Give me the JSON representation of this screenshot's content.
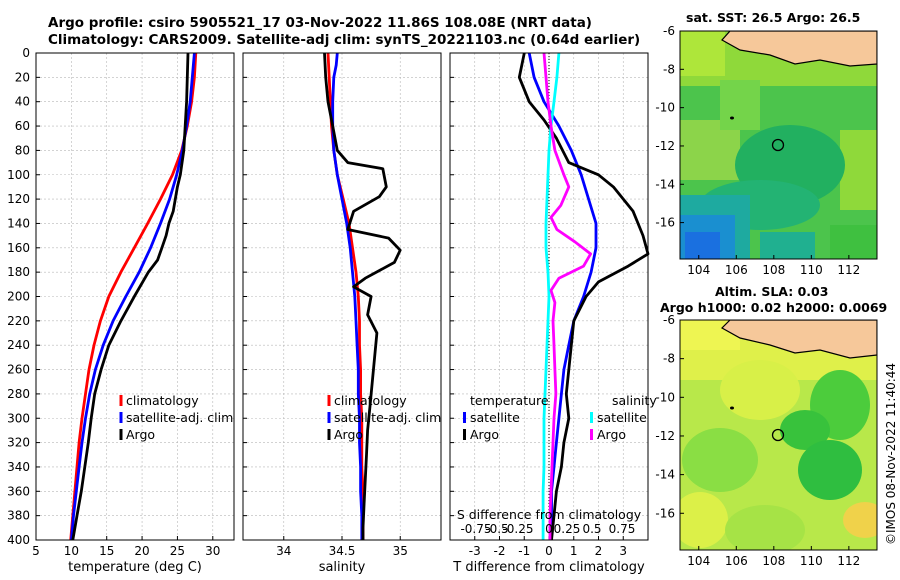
{
  "header": {
    "title_line1": "Argo profile: csiro 5905521_17 03-Nov-2022 11.86S 108.08E (NRT data)",
    "title_line2": "Climatology: CARS2009. Satellite-adj clim: synTS_20221103.nc (0.64d earlier)"
  },
  "map_panel": {
    "sst_title": "sat. SST: 26.5 Argo: 26.5",
    "sla_title_line1": "Altim. SLA: 0.03",
    "sla_title_line2": "Argo h1000: 0.02 h2000: 0.0069",
    "x_ticks": [
      "104",
      "106",
      "108",
      "110",
      "112"
    ],
    "y_ticks": [
      "-6",
      "-8",
      "-10",
      "-12",
      "-14",
      "-16"
    ],
    "float_position": {
      "lon": 108.08,
      "lat": -11.86
    }
  },
  "stamp": "©IMOS 08-Nov-2022 11:40:44",
  "colors": {
    "climatology": "#ff0000",
    "satellite": "#0000ff",
    "argo": "#000000",
    "s_diff": "#00ffff",
    "t_diff": "#ff00ff"
  },
  "chart_data": [
    {
      "type": "line",
      "xlabel": "temperature (deg C)",
      "ylabel": "",
      "xlim": [
        5,
        33
      ],
      "ylim": [
        400,
        0
      ],
      "x_ticks": [
        "5",
        "10",
        "15",
        "20",
        "25",
        "30"
      ],
      "y_ticks": [
        "0",
        "20",
        "40",
        "60",
        "80",
        "100",
        "120",
        "140",
        "160",
        "180",
        "200",
        "220",
        "240",
        "260",
        "280",
        "300",
        "320",
        "340",
        "360",
        "380",
        "400"
      ],
      "legend": [
        "climatology",
        "satellite-adj. clim",
        "Argo"
      ],
      "series": [
        {
          "name": "climatology",
          "points": [
            [
              27.6,
              0
            ],
            [
              27.4,
              20
            ],
            [
              27.0,
              40
            ],
            [
              26.4,
              60
            ],
            [
              25.6,
              80
            ],
            [
              24.3,
              100
            ],
            [
              22.6,
              120
            ],
            [
              20.8,
              140
            ],
            [
              18.9,
              160
            ],
            [
              17.0,
              180
            ],
            [
              15.3,
              200
            ],
            [
              14.1,
              220
            ],
            [
              13.2,
              240
            ],
            [
              12.5,
              260
            ],
            [
              12.0,
              280
            ],
            [
              11.5,
              300
            ],
            [
              11.1,
              320
            ],
            [
              10.8,
              340
            ],
            [
              10.5,
              360
            ],
            [
              10.2,
              380
            ],
            [
              9.9,
              400
            ]
          ]
        },
        {
          "name": "satellite-adj. clim",
          "points": [
            [
              27.4,
              0
            ],
            [
              27.1,
              20
            ],
            [
              26.8,
              40
            ],
            [
              26.3,
              60
            ],
            [
              25.7,
              80
            ],
            [
              24.9,
              100
            ],
            [
              23.9,
              120
            ],
            [
              22.6,
              140
            ],
            [
              21.2,
              160
            ],
            [
              19.6,
              180
            ],
            [
              17.7,
              200
            ],
            [
              15.9,
              220
            ],
            [
              14.5,
              240
            ],
            [
              13.4,
              260
            ],
            [
              12.6,
              280
            ],
            [
              12.0,
              300
            ],
            [
              11.5,
              320
            ],
            [
              11.1,
              340
            ],
            [
              10.7,
              360
            ],
            [
              10.3,
              380
            ],
            [
              10.0,
              400
            ]
          ]
        },
        {
          "name": "Argo",
          "points": [
            [
              26.5,
              0
            ],
            [
              26.4,
              20
            ],
            [
              26.3,
              40
            ],
            [
              26.1,
              60
            ],
            [
              25.9,
              80
            ],
            [
              25.4,
              100
            ],
            [
              25.0,
              110
            ],
            [
              24.7,
              120
            ],
            [
              24.4,
              130
            ],
            [
              23.8,
              140
            ],
            [
              23.4,
              150
            ],
            [
              22.8,
              160
            ],
            [
              22.2,
              170
            ],
            [
              20.9,
              180
            ],
            [
              18.9,
              200
            ],
            [
              17.0,
              220
            ],
            [
              15.3,
              240
            ],
            [
              14.2,
              260
            ],
            [
              13.3,
              280
            ],
            [
              12.8,
              300
            ],
            [
              12.4,
              320
            ],
            [
              11.9,
              340
            ],
            [
              11.4,
              360
            ],
            [
              10.8,
              380
            ],
            [
              10.2,
              400
            ]
          ]
        }
      ]
    },
    {
      "type": "line",
      "xlabel": "salinity",
      "ylabel": "",
      "xlim": [
        33.65,
        35.35
      ],
      "ylim": [
        400,
        0
      ],
      "x_ticks": [
        "34",
        "34.5",
        "35"
      ],
      "legend": [
        "climatology",
        "satellite-adj. clim",
        "Argo"
      ],
      "series": [
        {
          "name": "climatology",
          "points": [
            [
              34.38,
              0
            ],
            [
              34.39,
              20
            ],
            [
              34.4,
              40
            ],
            [
              34.41,
              60
            ],
            [
              34.43,
              80
            ],
            [
              34.46,
              100
            ],
            [
              34.51,
              120
            ],
            [
              34.56,
              140
            ],
            [
              34.59,
              160
            ],
            [
              34.62,
              180
            ],
            [
              34.64,
              200
            ],
            [
              34.65,
              220
            ],
            [
              34.65,
              240
            ],
            [
              34.66,
              260
            ],
            [
              34.66,
              280
            ],
            [
              34.67,
              300
            ],
            [
              34.67,
              320
            ],
            [
              34.67,
              340
            ],
            [
              34.68,
              360
            ],
            [
              34.68,
              380
            ],
            [
              34.68,
              400
            ]
          ]
        },
        {
          "name": "satellite-adj. clim",
          "points": [
            [
              34.46,
              0
            ],
            [
              34.45,
              10
            ],
            [
              34.43,
              20
            ],
            [
              34.42,
              40
            ],
            [
              34.42,
              60
            ],
            [
              34.43,
              80
            ],
            [
              34.46,
              100
            ],
            [
              34.5,
              120
            ],
            [
              34.54,
              140
            ],
            [
              34.57,
              160
            ],
            [
              34.59,
              180
            ],
            [
              34.61,
              200
            ],
            [
              34.62,
              220
            ],
            [
              34.63,
              240
            ],
            [
              34.64,
              260
            ],
            [
              34.64,
              280
            ],
            [
              34.65,
              300
            ],
            [
              34.65,
              320
            ],
            [
              34.66,
              340
            ],
            [
              34.66,
              360
            ],
            [
              34.67,
              380
            ],
            [
              34.67,
              400
            ]
          ]
        },
        {
          "name": "Argo",
          "points": [
            [
              34.35,
              0
            ],
            [
              34.36,
              20
            ],
            [
              34.38,
              40
            ],
            [
              34.42,
              60
            ],
            [
              34.46,
              80
            ],
            [
              34.55,
              90
            ],
            [
              34.85,
              95
            ],
            [
              34.88,
              110
            ],
            [
              34.82,
              118
            ],
            [
              34.6,
              130
            ],
            [
              34.55,
              145
            ],
            [
              34.9,
              152
            ],
            [
              35.0,
              162
            ],
            [
              34.95,
              172
            ],
            [
              34.7,
              185
            ],
            [
              34.6,
              192
            ],
            [
              34.75,
              200
            ],
            [
              34.72,
              215
            ],
            [
              34.8,
              230
            ],
            [
              34.78,
              250
            ],
            [
              34.76,
              270
            ],
            [
              34.74,
              290
            ],
            [
              34.72,
              310
            ],
            [
              34.71,
              330
            ],
            [
              34.7,
              350
            ],
            [
              34.69,
              370
            ],
            [
              34.68,
              390
            ],
            [
              34.68,
              400
            ]
          ]
        }
      ]
    },
    {
      "type": "line",
      "xlabel": "T difference from climatology",
      "ylabel": "",
      "xlim": [
        -4,
        4
      ],
      "ylim": [
        400,
        0
      ],
      "x_ticks": [
        "-3",
        "-2",
        "-1",
        "0",
        "1",
        "2",
        "3"
      ],
      "secondary_x": {
        "label": "S difference from climatology",
        "ticks": [
          "-0.75",
          "-0.5",
          "-0.25",
          "0",
          "0.25",
          "0.5",
          "0.75"
        ]
      },
      "legend_groups": [
        {
          "heading": "temperature",
          "entries": [
            "satellite",
            "Argo"
          ]
        },
        {
          "heading": "salinity",
          "entries": [
            "satellite",
            "Argo"
          ]
        }
      ],
      "series": [
        {
          "name": "temperature satellite",
          "points": [
            [
              -0.8,
              0
            ],
            [
              -0.6,
              20
            ],
            [
              -0.2,
              40
            ],
            [
              0.4,
              60
            ],
            [
              0.9,
              80
            ],
            [
              1.3,
              100
            ],
            [
              1.6,
              120
            ],
            [
              1.9,
              140
            ],
            [
              1.9,
              160
            ],
            [
              1.7,
              180
            ],
            [
              1.4,
              200
            ],
            [
              1.0,
              220
            ],
            [
              0.8,
              240
            ],
            [
              0.6,
              260
            ],
            [
              0.5,
              280
            ],
            [
              0.4,
              300
            ],
            [
              0.3,
              320
            ],
            [
              0.2,
              340
            ],
            [
              0.1,
              360
            ],
            [
              0.1,
              380
            ],
            [
              0.1,
              400
            ]
          ]
        },
        {
          "name": "temperature Argo",
          "points": [
            [
              -1.0,
              0
            ],
            [
              -1.2,
              20
            ],
            [
              -0.8,
              40
            ],
            [
              -0.2,
              55
            ],
            [
              0.3,
              70
            ],
            [
              0.8,
              90
            ],
            [
              2.0,
              100
            ],
            [
              2.6,
              110
            ],
            [
              3.4,
              130
            ],
            [
              3.8,
              150
            ],
            [
              4.0,
              165
            ],
            [
              3.2,
              175
            ],
            [
              2.0,
              188
            ],
            [
              1.5,
              200
            ],
            [
              1.0,
              220
            ],
            [
              0.9,
              240
            ],
            [
              0.8,
              260
            ],
            [
              0.7,
              280
            ],
            [
              0.8,
              300
            ],
            [
              0.6,
              320
            ],
            [
              0.5,
              340
            ],
            [
              0.3,
              360
            ],
            [
              0.2,
              380
            ],
            [
              0.1,
              400
            ]
          ]
        },
        {
          "name": "salinity satellite",
          "points": [
            [
              0.1,
              0
            ],
            [
              0.08,
              20
            ],
            [
              0.05,
              40
            ],
            [
              0.02,
              60
            ],
            [
              0.0,
              80
            ],
            [
              -0.01,
              100
            ],
            [
              -0.02,
              120
            ],
            [
              -0.03,
              140
            ],
            [
              -0.03,
              160
            ],
            [
              -0.01,
              180
            ],
            [
              0.0,
              200
            ],
            [
              -0.01,
              220
            ],
            [
              -0.02,
              240
            ],
            [
              -0.03,
              260
            ],
            [
              -0.04,
              280
            ],
            [
              -0.05,
              300
            ],
            [
              -0.05,
              320
            ],
            [
              -0.05,
              340
            ],
            [
              -0.06,
              360
            ],
            [
              -0.06,
              380
            ],
            [
              -0.06,
              400
            ]
          ]
        },
        {
          "name": "salinity Argo",
          "points": [
            [
              -0.05,
              0
            ],
            [
              -0.03,
              20
            ],
            [
              -0.01,
              40
            ],
            [
              0.02,
              60
            ],
            [
              0.06,
              80
            ],
            [
              0.15,
              100
            ],
            [
              0.2,
              110
            ],
            [
              0.12,
              125
            ],
            [
              0.02,
              135
            ],
            [
              0.08,
              145
            ],
            [
              0.26,
              155
            ],
            [
              0.42,
              165
            ],
            [
              0.35,
              175
            ],
            [
              0.1,
              185
            ],
            [
              0.02,
              195
            ],
            [
              0.06,
              205
            ],
            [
              0.04,
              220
            ],
            [
              0.05,
              240
            ],
            [
              0.06,
              260
            ],
            [
              0.07,
              280
            ],
            [
              0.05,
              300
            ],
            [
              0.04,
              320
            ],
            [
              0.03,
              340
            ],
            [
              0.02,
              360
            ],
            [
              0.01,
              380
            ],
            [
              0.01,
              400
            ]
          ]
        }
      ]
    }
  ]
}
